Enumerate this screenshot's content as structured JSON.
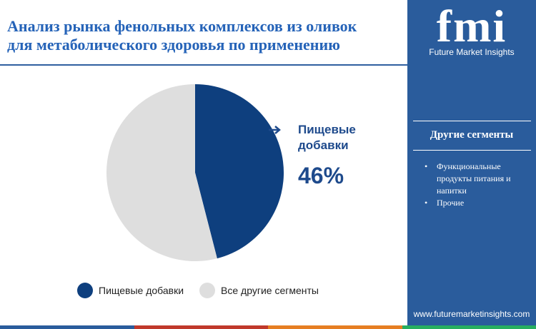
{
  "title_line1": "Анализ рынка фенольных комплексов из оливок",
  "title_line2": "для метаболического здоровья по применению",
  "brand": {
    "logo_text": "fmi",
    "name": "Future Market Insights",
    "website": "www.futuremarketinsights.com",
    "panel_color": "#2a5c9c"
  },
  "side_panel": {
    "heading": "Другие сегменты",
    "items": [
      "Функциональные продукты питания и напитки",
      "Прочие"
    ]
  },
  "callout": {
    "label": "Пищевые добавки",
    "value": "46%"
  },
  "chart_data": {
    "type": "pie",
    "title": "",
    "slices": [
      {
        "name": "Пищевые добавки",
        "value": 46,
        "color": "#0e3f7e"
      },
      {
        "name": "Все другие сегменты",
        "value": 54,
        "color": "#dedede"
      }
    ],
    "legend_position": "bottom"
  },
  "bottom_strip_colors": [
    "#2a5c9c",
    "#c0392b",
    "#e67e22",
    "#27ae60"
  ]
}
